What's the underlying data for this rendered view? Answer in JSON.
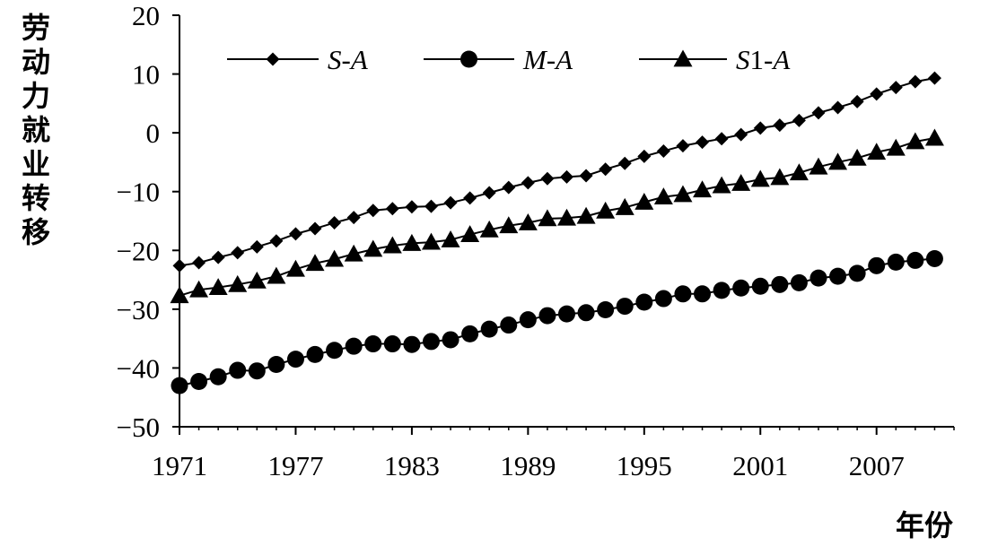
{
  "chart_data": {
    "type": "line",
    "xlabel": "年份",
    "ylabel": "劳动力就业转移",
    "x": [
      1971,
      1972,
      1973,
      1974,
      1975,
      1976,
      1977,
      1978,
      1979,
      1980,
      1981,
      1982,
      1983,
      1984,
      1985,
      1986,
      1987,
      1988,
      1989,
      1990,
      1991,
      1992,
      1993,
      1994,
      1995,
      1996,
      1997,
      1998,
      1999,
      2000,
      2001,
      2002,
      2003,
      2004,
      2005,
      2006,
      2007,
      2008,
      2009,
      2010
    ],
    "xticks": [
      "1971",
      "1977",
      "1983",
      "1989",
      "1995",
      "2001",
      "2007"
    ],
    "xtick_values": [
      1971,
      1977,
      1983,
      1989,
      1995,
      2001,
      2007
    ],
    "xlim": [
      1971,
      2011
    ],
    "yticks": [
      "20",
      "10",
      "0",
      "−10",
      "−20",
      "−30",
      "−40",
      "−50"
    ],
    "ytick_values": [
      20,
      10,
      0,
      -10,
      -20,
      -30,
      -40,
      -50
    ],
    "ylim": [
      -50,
      20
    ],
    "grid": false,
    "legend_position": "top",
    "series": [
      {
        "name": "S-A",
        "label_main": "S",
        "label_suffix": "-A",
        "marker": "diamond",
        "color": "#000000",
        "values": [
          -22.6,
          -22.1,
          -21.2,
          -20.4,
          -19.4,
          -18.4,
          -17.2,
          -16.3,
          -15.3,
          -14.4,
          -13.2,
          -12.9,
          -12.6,
          -12.5,
          -11.9,
          -11.1,
          -10.2,
          -9.3,
          -8.5,
          -7.8,
          -7.5,
          -7.3,
          -6.2,
          -5.2,
          -4.0,
          -3.1,
          -2.2,
          -1.6,
          -1.0,
          -0.3,
          0.8,
          1.3,
          2.1,
          3.4,
          4.3,
          5.3,
          6.6,
          7.7,
          8.7,
          9.3
        ]
      },
      {
        "name": "M-A",
        "label_main": "M",
        "label_suffix": "-A",
        "marker": "circle",
        "color": "#000000",
        "values": [
          -43.0,
          -42.3,
          -41.5,
          -40.4,
          -40.5,
          -39.4,
          -38.5,
          -37.7,
          -37.0,
          -36.3,
          -35.9,
          -35.9,
          -36.0,
          -35.5,
          -35.2,
          -34.2,
          -33.4,
          -32.7,
          -31.8,
          -31.1,
          -30.8,
          -30.6,
          -30.1,
          -29.5,
          -28.8,
          -28.2,
          -27.4,
          -27.4,
          -26.8,
          -26.4,
          -26.1,
          -25.8,
          -25.5,
          -24.7,
          -24.4,
          -23.9,
          -22.6,
          -22.0,
          -21.7,
          -21.4
        ]
      },
      {
        "name": "S1-A",
        "label_main": "S",
        "label_suffix": "1-A",
        "marker": "triangle",
        "color": "#000000",
        "values": [
          -27.7,
          -26.7,
          -26.3,
          -25.8,
          -25.2,
          -24.4,
          -23.2,
          -22.2,
          -21.5,
          -20.6,
          -19.8,
          -19.2,
          -18.8,
          -18.6,
          -18.2,
          -17.3,
          -16.5,
          -15.8,
          -15.3,
          -14.6,
          -14.5,
          -14.2,
          -13.3,
          -12.7,
          -11.8,
          -10.9,
          -10.5,
          -9.7,
          -9.0,
          -8.6,
          -7.9,
          -7.6,
          -6.8,
          -5.8,
          -5.0,
          -4.3,
          -3.3,
          -2.6,
          -1.5,
          -0.9
        ]
      }
    ]
  }
}
